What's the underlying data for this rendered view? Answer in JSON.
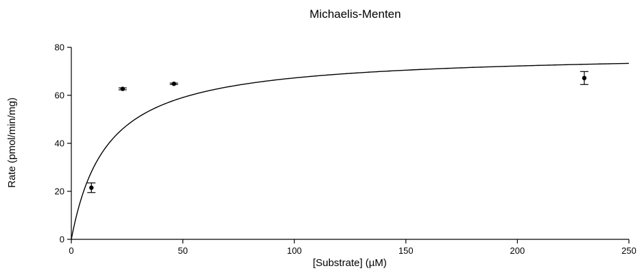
{
  "chart_data": {
    "type": "scatter",
    "title": "Michaelis-Menten",
    "xlabel": "[Substrate] (µM)",
    "ylabel": "Rate (pmol/min/mg)",
    "xlim": [
      0,
      250
    ],
    "ylim": [
      0,
      80
    ],
    "x_ticks": [
      0,
      50,
      100,
      150,
      200,
      250
    ],
    "y_ticks": [
      0,
      20,
      40,
      60,
      80
    ],
    "x_tick_labels": [
      "0",
      "50",
      "100",
      "150",
      "200",
      "250"
    ],
    "y_tick_labels": [
      "0",
      "20",
      "40",
      "60",
      "80"
    ],
    "grid": false,
    "series": [
      {
        "type": "scatter",
        "marker": "filled-circle",
        "color": "#000000",
        "points": [
          {
            "x": 9,
            "y": 21.5,
            "err_low": 2.0,
            "err_high": 2.0
          },
          {
            "x": 23,
            "y": 62.7,
            "err_low": 0.4,
            "err_high": 0.4
          },
          {
            "x": 46,
            "y": 64.8,
            "err_low": 0.3,
            "err_high": 0.3
          },
          {
            "x": 230,
            "y": 67.2,
            "err_low": 2.7,
            "err_high": 2.7
          }
        ]
      },
      {
        "type": "line",
        "fit": "michaelis-menten",
        "vmax": 78,
        "km": 16,
        "color": "#000000",
        "x_range": [
          0,
          250
        ]
      }
    ]
  }
}
